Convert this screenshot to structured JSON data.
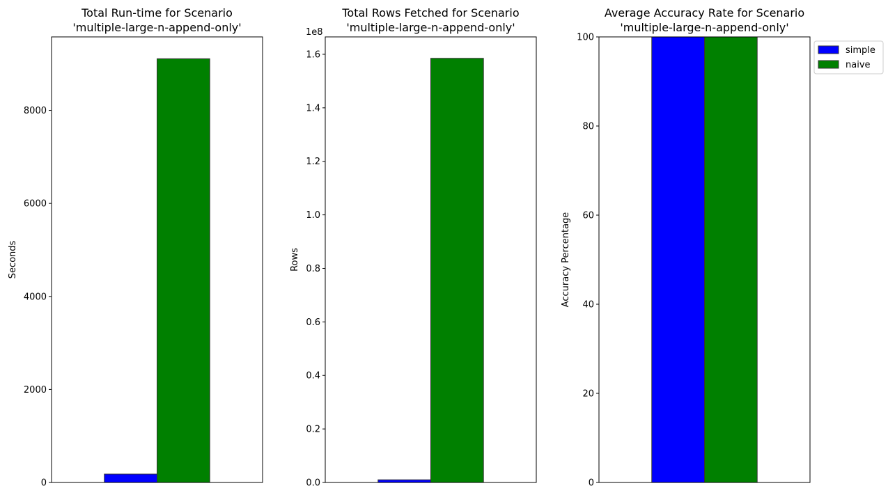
{
  "chart_data": [
    {
      "type": "bar",
      "title": "Total Run-time for Scenario\n'multiple-large-n-append-only'",
      "xlabel": "",
      "ylabel": "Seconds",
      "ylim": [
        0,
        9580
      ],
      "yticks": [
        0,
        2000,
        4000,
        6000,
        8000
      ],
      "offset_text": "",
      "series": [
        {
          "name": "simple",
          "values": [
            180
          ],
          "color": "#0000ff"
        },
        {
          "name": "naive",
          "values": [
            9110
          ],
          "color": "#008000"
        }
      ]
    },
    {
      "type": "bar",
      "title": "Total Rows Fetched for Scenario\n'multiple-large-n-append-only'",
      "xlabel": "",
      "ylabel": "Rows",
      "ylim": [
        0,
        1.665
      ],
      "yticks": [
        0.0,
        0.2,
        0.4,
        0.6,
        0.8,
        1.0,
        1.2,
        1.4,
        1.6
      ],
      "offset_text": "1e8",
      "series": [
        {
          "name": "simple",
          "values": [
            0.01
          ],
          "color": "#0000ff"
        },
        {
          "name": "naive",
          "values": [
            1.585
          ],
          "color": "#008000"
        }
      ]
    },
    {
      "type": "bar",
      "title": "Average Accuracy Rate for Scenario\n'multiple-large-n-append-only'",
      "xlabel": "",
      "ylabel": "Accuracy Percentage",
      "ylim": [
        0,
        100
      ],
      "yticks": [
        0,
        20,
        40,
        60,
        80,
        100
      ],
      "offset_text": "",
      "series": [
        {
          "name": "simple",
          "values": [
            100
          ],
          "color": "#0000ff"
        },
        {
          "name": "naive",
          "values": [
            100
          ],
          "color": "#008000"
        }
      ],
      "legend": {
        "placement": "outside-top-right"
      }
    }
  ],
  "legend": {
    "items": [
      {
        "label": "simple",
        "color": "#0000ff"
      },
      {
        "label": "naive",
        "color": "#008000"
      }
    ]
  },
  "colors": {
    "edge": "#333333",
    "simple": "#0000ff",
    "naive": "#008000"
  }
}
